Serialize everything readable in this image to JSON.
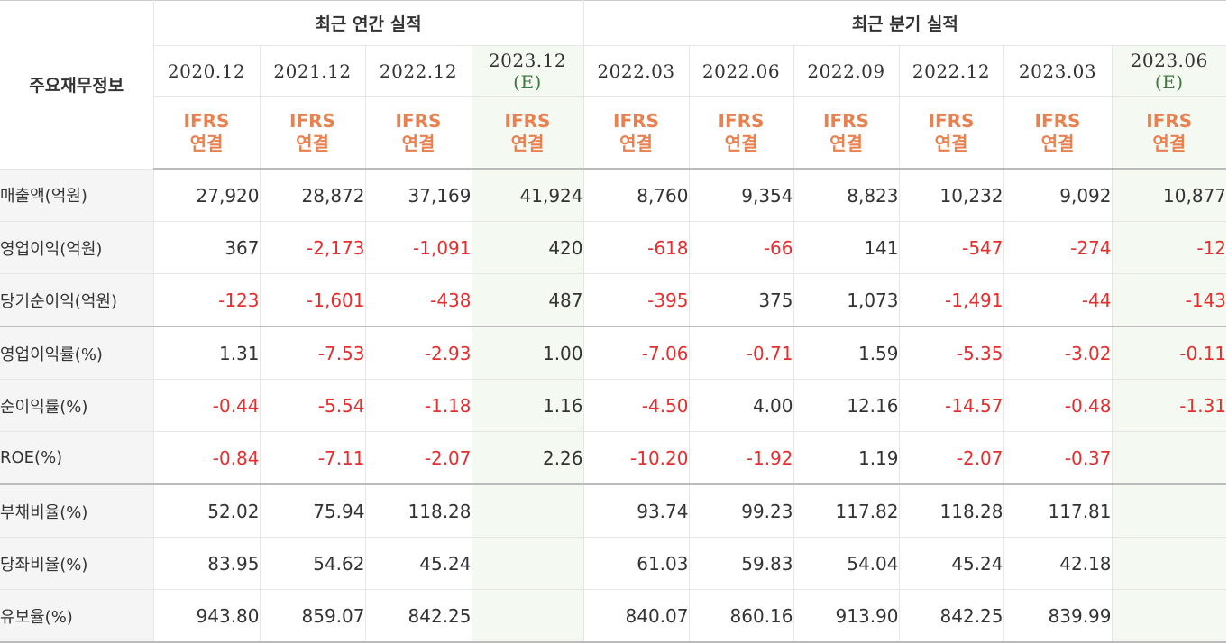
{
  "corner_label": "주요재무정보",
  "groups": {
    "annual": "최근 연간 실적",
    "quarterly": "최근 분기 실적"
  },
  "periods": [
    {
      "date": "2020.12",
      "est": ""
    },
    {
      "date": "2021.12",
      "est": ""
    },
    {
      "date": "2022.12",
      "est": ""
    },
    {
      "date": "2023.12",
      "est": "(E)"
    },
    {
      "date": "2022.03",
      "est": ""
    },
    {
      "date": "2022.06",
      "est": ""
    },
    {
      "date": "2022.09",
      "est": ""
    },
    {
      "date": "2022.12",
      "est": ""
    },
    {
      "date": "2023.03",
      "est": ""
    },
    {
      "date": "2023.06",
      "est": "(E)"
    }
  ],
  "ifrs": {
    "line1": "IFRS",
    "line2": "연결"
  },
  "rows": [
    {
      "label": "매출액(억원)",
      "values": [
        "27,920",
        "28,872",
        "37,169",
        "41,924",
        "8,760",
        "9,354",
        "8,823",
        "10,232",
        "9,092",
        "10,877"
      ]
    },
    {
      "label": "영업이익(억원)",
      "values": [
        "367",
        "-2,173",
        "-1,091",
        "420",
        "-618",
        "-66",
        "141",
        "-547",
        "-274",
        "-12"
      ]
    },
    {
      "label": "당기순이익(억원)",
      "values": [
        "-123",
        "-1,601",
        "-438",
        "487",
        "-395",
        "375",
        "1,073",
        "-1,491",
        "-44",
        "-143"
      ]
    },
    {
      "label": "영업이익률(%)",
      "values": [
        "1.31",
        "-7.53",
        "-2.93",
        "1.00",
        "-7.06",
        "-0.71",
        "1.59",
        "-5.35",
        "-3.02",
        "-0.11"
      ]
    },
    {
      "label": "순이익률(%)",
      "values": [
        "-0.44",
        "-5.54",
        "-1.18",
        "1.16",
        "-4.50",
        "4.00",
        "12.16",
        "-14.57",
        "-0.48",
        "-1.31"
      ]
    },
    {
      "label": "ROE(%)",
      "values": [
        "-0.84",
        "-7.11",
        "-2.07",
        "2.26",
        "-10.20",
        "-1.92",
        "1.19",
        "-2.07",
        "-0.37",
        ""
      ]
    },
    {
      "label": "부채비율(%)",
      "values": [
        "52.02",
        "75.94",
        "118.28",
        "",
        "93.74",
        "99.23",
        "117.82",
        "118.28",
        "117.81",
        ""
      ]
    },
    {
      "label": "당좌비율(%)",
      "values": [
        "83.95",
        "54.62",
        "45.24",
        "",
        "61.03",
        "59.83",
        "54.04",
        "45.24",
        "42.18",
        ""
      ]
    },
    {
      "label": "유보율(%)",
      "values": [
        "943.80",
        "859.07",
        "842.25",
        "",
        "840.07",
        "860.16",
        "913.90",
        "842.25",
        "839.99",
        ""
      ]
    }
  ],
  "colors": {
    "negative": "#e52e2e",
    "ifrs": "#e8804f",
    "estimate_bg": "#f4f9f1",
    "estimate_mark": "#3d7a3d",
    "label_bg": "#f5f5f5"
  }
}
